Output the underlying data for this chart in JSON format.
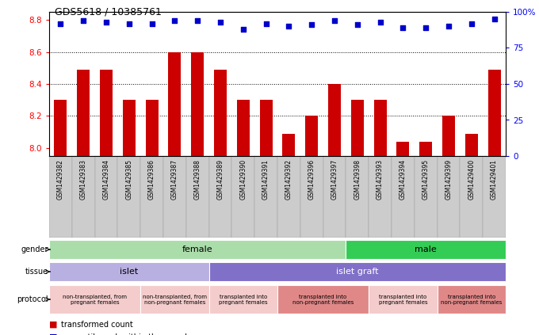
{
  "title": "GDS5618 / 10385761",
  "samples": [
    "GSM1429382",
    "GSM1429383",
    "GSM1429384",
    "GSM1429385",
    "GSM1429386",
    "GSM1429387",
    "GSM1429388",
    "GSM1429389",
    "GSM1429390",
    "GSM1429391",
    "GSM1429392",
    "GSM1429396",
    "GSM1429397",
    "GSM1429398",
    "GSM1429393",
    "GSM1429394",
    "GSM1429395",
    "GSM1429399",
    "GSM1429400",
    "GSM1429401"
  ],
  "bar_values": [
    8.3,
    8.49,
    8.49,
    8.3,
    8.3,
    8.6,
    8.6,
    8.49,
    8.3,
    8.3,
    8.09,
    8.2,
    8.4,
    8.3,
    8.3,
    8.04,
    8.04,
    8.2,
    8.09,
    8.49
  ],
  "percentile_values": [
    92,
    94,
    93,
    92,
    92,
    94,
    94,
    93,
    88,
    92,
    90,
    91,
    94,
    91,
    93,
    89,
    89,
    90,
    92,
    95
  ],
  "ylim_left": [
    7.95,
    8.85
  ],
  "ylim_right": [
    0,
    100
  ],
  "yticks_left": [
    8.0,
    8.2,
    8.4,
    8.6,
    8.8
  ],
  "yticks_right": [
    0,
    25,
    50,
    75,
    100
  ],
  "bar_color": "#cc0000",
  "dot_color": "#0000cc",
  "xlabel_bg": "#cccccc",
  "gender_groups": [
    {
      "label": "female",
      "start": 0,
      "end": 13,
      "color": "#aaddaa"
    },
    {
      "label": "male",
      "start": 13,
      "end": 20,
      "color": "#33cc55"
    }
  ],
  "tissue_groups": [
    {
      "label": "islet",
      "start": 0,
      "end": 7,
      "color": "#b8b0e0"
    },
    {
      "label": "islet graft",
      "start": 7,
      "end": 20,
      "color": "#8070c8"
    }
  ],
  "protocol_groups": [
    {
      "label": "non-transplanted, from\npregnant females",
      "start": 0,
      "end": 4,
      "color": "#f4cccc"
    },
    {
      "label": "non-transplanted, from\nnon-pregnant females",
      "start": 4,
      "end": 7,
      "color": "#f4cccc"
    },
    {
      "label": "transplanted into\npregnant females",
      "start": 7,
      "end": 10,
      "color": "#f4cccc"
    },
    {
      "label": "transplanted into\nnon-pregnant females",
      "start": 10,
      "end": 14,
      "color": "#e08888"
    },
    {
      "label": "transplanted into\npregnant females",
      "start": 14,
      "end": 17,
      "color": "#f4cccc"
    },
    {
      "label": "transplanted into\nnon-pregnant females",
      "start": 17,
      "end": 20,
      "color": "#e08888"
    }
  ]
}
